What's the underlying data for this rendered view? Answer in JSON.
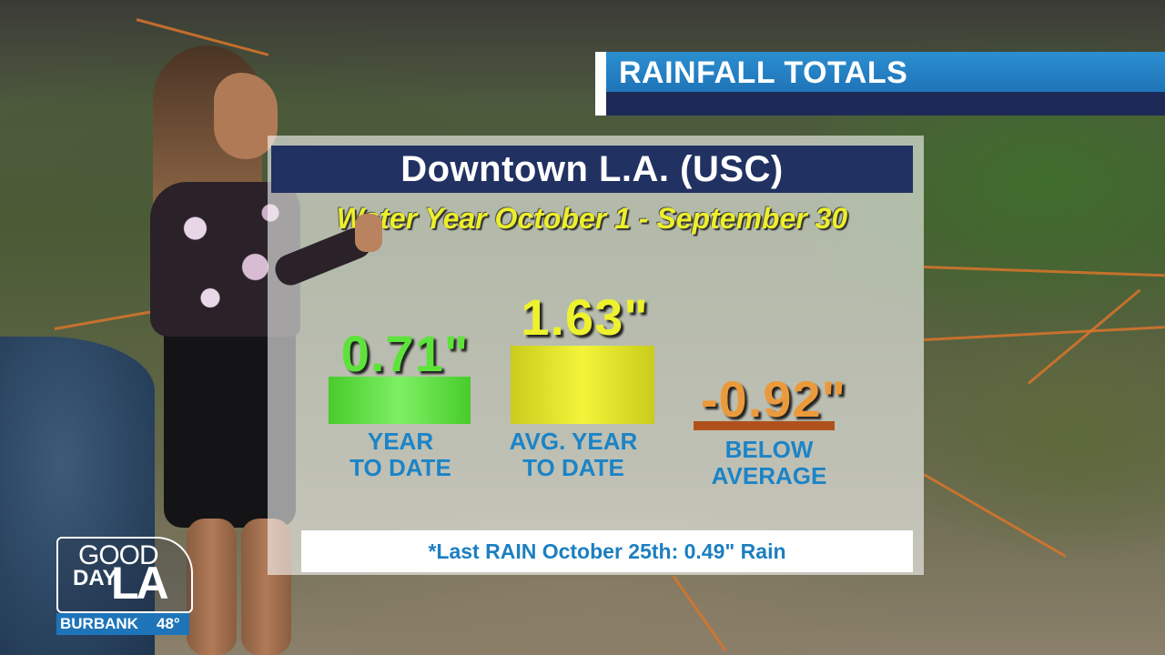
{
  "header": {
    "title": "RAINFALL TOTALS"
  },
  "panel": {
    "station": "Downtown L.A. (USC)",
    "subtitle": "Water Year October 1 - September 30",
    "year_to_date": {
      "value": "0.71\"",
      "label_line1": "YEAR",
      "label_line2": "TO DATE"
    },
    "avg_year_to_date": {
      "value": "1.63\"",
      "label_line1": "AVG. YEAR",
      "label_line2": "TO DATE"
    },
    "below_average": {
      "value": "-0.92\"",
      "label_line1": "BELOW",
      "label_line2": "AVERAGE"
    },
    "footnote": "*Last RAIN October 25th: 0.49\" Rain"
  },
  "logo": {
    "line1": "GOOD",
    "line2": "DAY",
    "line3": "LA"
  },
  "weather": {
    "location": "BURBANK",
    "temperature": "48°"
  },
  "colors": {
    "banner_blue": "#1f74b8",
    "station_navy": "#213162",
    "green": "#5de33b",
    "yellow": "#eef22e",
    "orange": "#eb9a3b",
    "label_blue": "#1b84c7"
  }
}
